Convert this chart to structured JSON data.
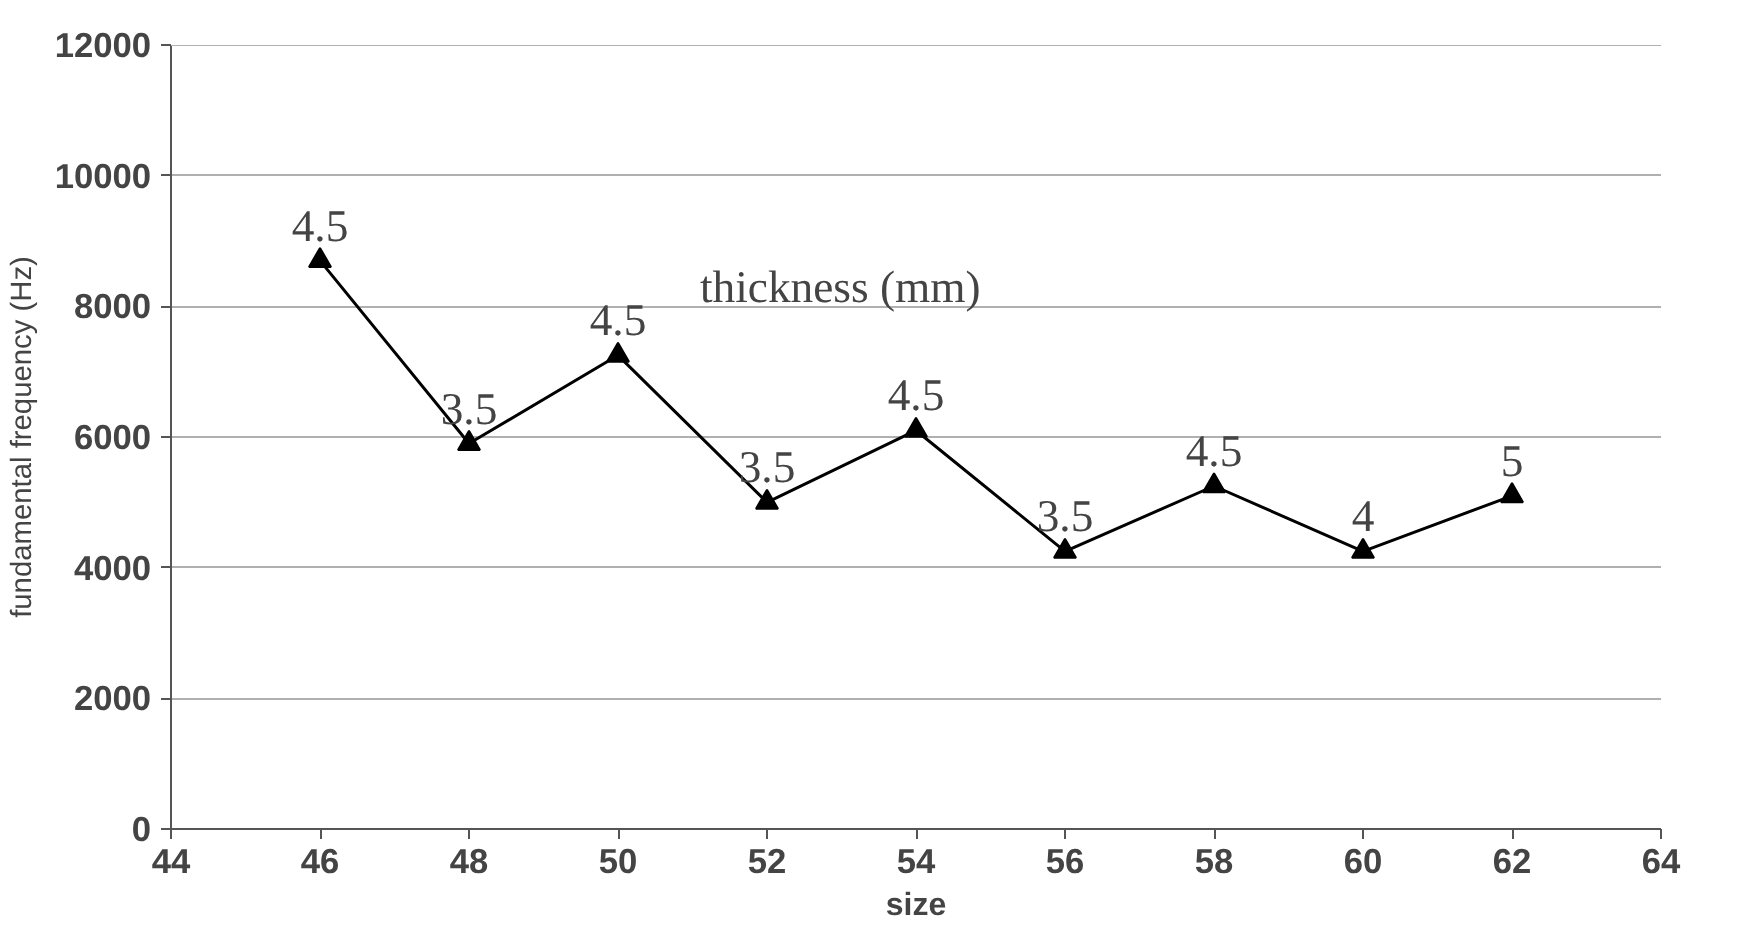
{
  "chart_data": {
    "type": "line",
    "xlabel": "size",
    "ylabel": "fundamental frequency (Hz)",
    "x": [
      46,
      48,
      50,
      52,
      54,
      56,
      58,
      60,
      62
    ],
    "series": [
      {
        "color": "#000000",
        "values": [
          8700,
          5900,
          7250,
          5000,
          6100,
          4250,
          5250,
          4250,
          5100
        ]
      }
    ],
    "xlim": [
      44,
      64
    ],
    "xticks": [
      44,
      46,
      48,
      50,
      52,
      54,
      56,
      58,
      60,
      62,
      64
    ],
    "ylim": [
      0,
      12000
    ],
    "yticks": [
      0,
      2000,
      4000,
      6000,
      8000,
      10000,
      12000
    ],
    "annotations": [
      "thickness (mm)",
      {
        "text": "4.5",
        "x": 46,
        "y": 8700
      },
      {
        "text": "3.5",
        "x": 48,
        "y": 5900
      },
      {
        "text": "4.5",
        "x": 50,
        "y": 7250
      },
      {
        "text": "3.5",
        "x": 52,
        "y": 5000
      },
      {
        "text": "4.5",
        "x": 54,
        "y": 6100
      },
      {
        "text": "3.5",
        "x": 56,
        "y": 4250
      },
      {
        "text": "4.5",
        "x": 58,
        "y": 5250
      },
      {
        "text": "4",
        "x": 60,
        "y": 4250
      },
      {
        "text": "5",
        "x": 62,
        "y": 5100
      }
    ],
    "grid": "y",
    "marker": "triangle",
    "line_style": "solid"
  }
}
